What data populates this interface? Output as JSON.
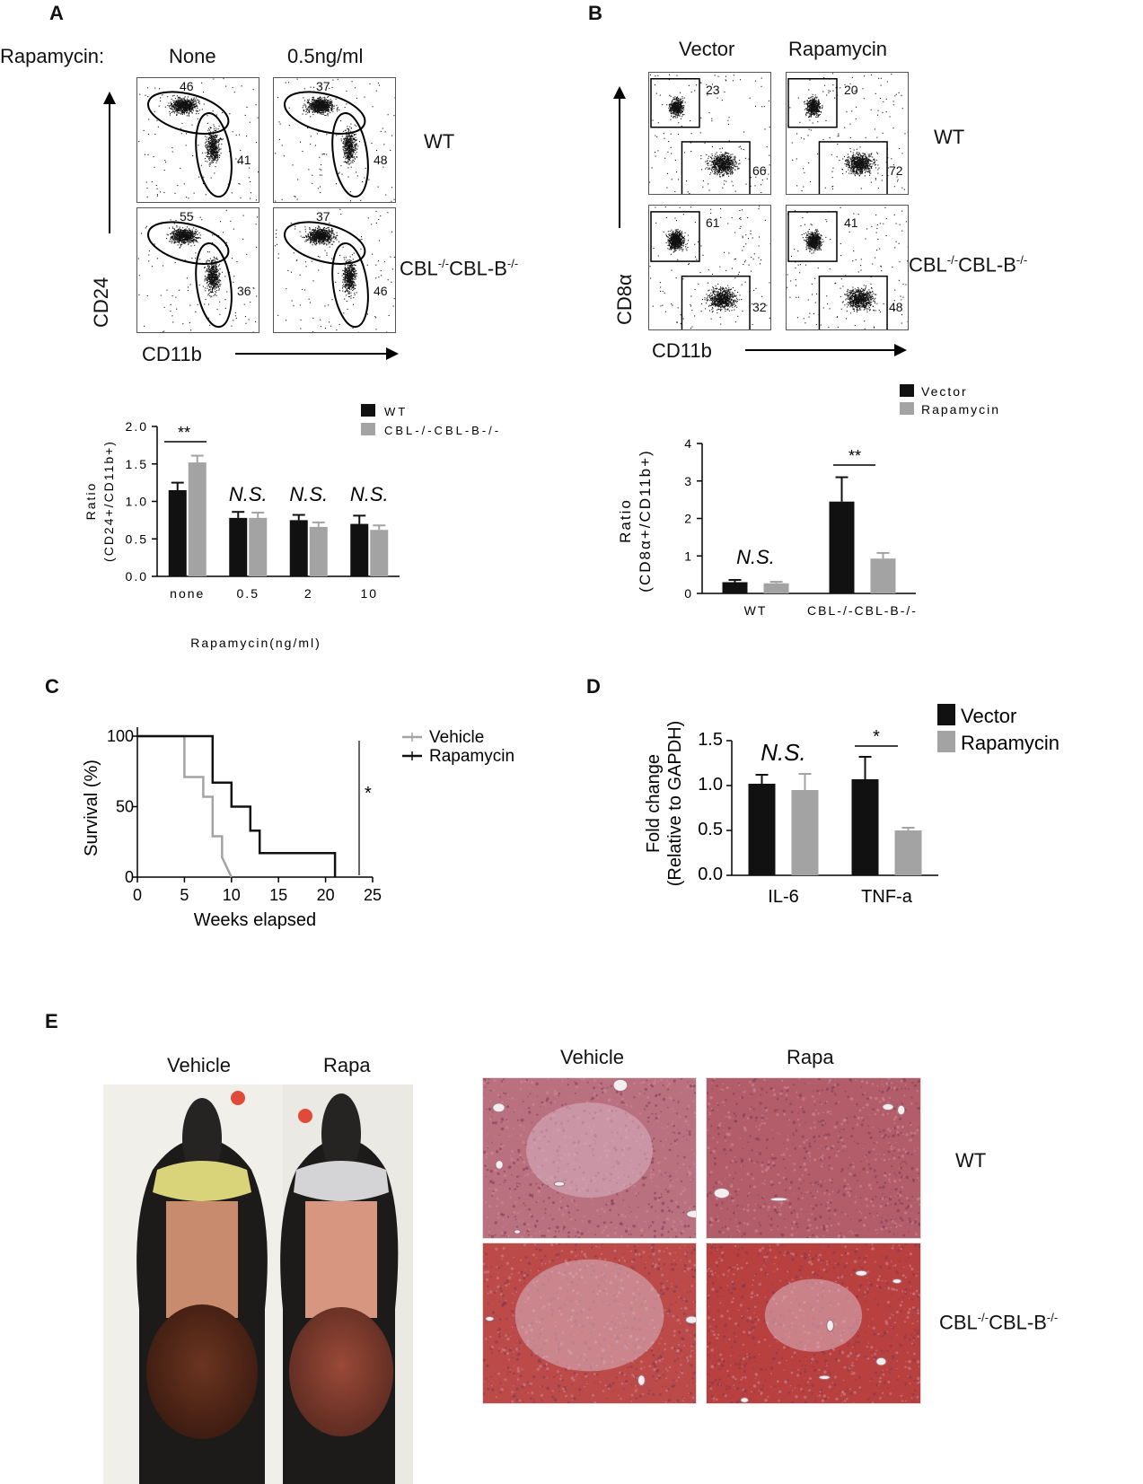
{
  "panel_labels": {
    "a": "A",
    "b": "B",
    "c": "C",
    "d": "D",
    "e": "E"
  },
  "panelA": {
    "row_header": "Rapamycin:",
    "col_labels": [
      "None",
      "0.5ng/ml"
    ],
    "row_labels": [
      "WT",
      "CBL-/-CBL-B-/-"
    ],
    "genotype_base": "CBL",
    "genotype_mid": "CBL-B",
    "sup": "-/-",
    "y_axis": "CD24",
    "x_axis": "CD11b",
    "gates": [
      [
        "46",
        "41"
      ],
      [
        "37",
        "48"
      ],
      [
        "55",
        "36"
      ],
      [
        "37",
        "46"
      ]
    ]
  },
  "panelB": {
    "col_labels": [
      "Vector",
      "Rapamycin"
    ],
    "row_labels": [
      "WT",
      "CBL-/-CBL-B-/-"
    ],
    "y_axis": "CD8α",
    "x_axis": "CD11b",
    "gates": [
      [
        "23",
        "66"
      ],
      [
        "20",
        "72"
      ],
      [
        "61",
        "32"
      ],
      [
        "41",
        "48"
      ]
    ]
  },
  "colors": {
    "black": "#111111",
    "grey": "#a3a3a3"
  },
  "chart_data": [
    {
      "id": "A-bar",
      "type": "bar",
      "categories": [
        "none",
        "0.5",
        "2",
        "10"
      ],
      "series": [
        {
          "name": "WT",
          "values": [
            1.15,
            0.78,
            0.75,
            0.7
          ],
          "errors": [
            0.1,
            0.08,
            0.07,
            0.11
          ]
        },
        {
          "name": "CBL-/-CBL-B-/-",
          "values": [
            1.52,
            0.78,
            0.66,
            0.62
          ],
          "errors": [
            0.09,
            0.07,
            0.06,
            0.06
          ]
        }
      ],
      "xlabel": "Rapamycin(ng/ml)",
      "ylabel": "Ratio",
      "ylabel2": "(CD24+/CD11b+)",
      "ylim": [
        0,
        2.0
      ],
      "yticks": [
        "0.0",
        "0.5",
        "1.0",
        "1.5",
        "2.0"
      ],
      "annotations": [
        "**",
        "N.S.",
        "N.S.",
        "N.S."
      ],
      "legend": "top-right"
    },
    {
      "id": "B-bar",
      "type": "bar",
      "categories": [
        "WT",
        "CBL-/-CBL-B-/-"
      ],
      "series": [
        {
          "name": "Vector",
          "values": [
            0.3,
            2.45
          ],
          "errors": [
            0.06,
            0.65
          ]
        },
        {
          "name": "Rapamycin",
          "values": [
            0.27,
            0.93
          ],
          "errors": [
            0.04,
            0.15
          ]
        }
      ],
      "ylabel": "Ratio",
      "ylabel2": "(CD8α+/CD11b+)",
      "ylim": [
        0,
        4
      ],
      "yticks": [
        "0",
        "1",
        "2",
        "3",
        "4"
      ],
      "annotations": [
        "N.S.",
        "**"
      ],
      "legend": "top"
    },
    {
      "id": "C-survival",
      "type": "line",
      "series": [
        {
          "name": "Vehicle",
          "x": [
            0,
            5,
            5,
            7,
            7,
            8,
            8,
            9,
            9,
            10
          ],
          "y": [
            100,
            100,
            71,
            71,
            57,
            57,
            29,
            29,
            14,
            0
          ]
        },
        {
          "name": "Rapamycin",
          "x": [
            0,
            8,
            8,
            10,
            10,
            12,
            12,
            13,
            13,
            21,
            21
          ],
          "y": [
            100,
            100,
            67,
            67,
            50,
            50,
            33,
            33,
            17,
            17,
            0
          ]
        }
      ],
      "xlabel": "Weeks elapsed",
      "ylabel": "Survival (%)",
      "xlim": [
        0,
        25
      ],
      "ylim": [
        0,
        100
      ],
      "xticks": [
        "0",
        "5",
        "10",
        "15",
        "20",
        "25"
      ],
      "yticks": [
        "0",
        "50",
        "100"
      ],
      "annotations": [
        "*"
      ],
      "legend": "top-right"
    },
    {
      "id": "D-bar",
      "type": "bar",
      "categories": [
        "IL-6",
        "TNF-a"
      ],
      "series": [
        {
          "name": "Vector",
          "values": [
            1.02,
            1.07
          ],
          "errors": [
            0.1,
            0.25
          ]
        },
        {
          "name": "Rapamycin",
          "values": [
            0.95,
            0.5
          ],
          "errors": [
            0.18,
            0.03
          ]
        }
      ],
      "ylabel": "Fold change",
      "ylabel2": "(Relative to GAPDH)",
      "ylim": [
        0,
        1.5
      ],
      "yticks": [
        "0.0",
        "0.5",
        "1.0",
        "1.5"
      ],
      "annotations": [
        "N.S.",
        "*"
      ],
      "legend": "top-right"
    }
  ],
  "panelE": {
    "photo_labels": [
      "Vehicle",
      "Rapa"
    ],
    "hist_labels": [
      "Vehicle",
      "Rapa"
    ],
    "row_labels": [
      "WT",
      "CBL-/-CBL-B-/-"
    ]
  }
}
